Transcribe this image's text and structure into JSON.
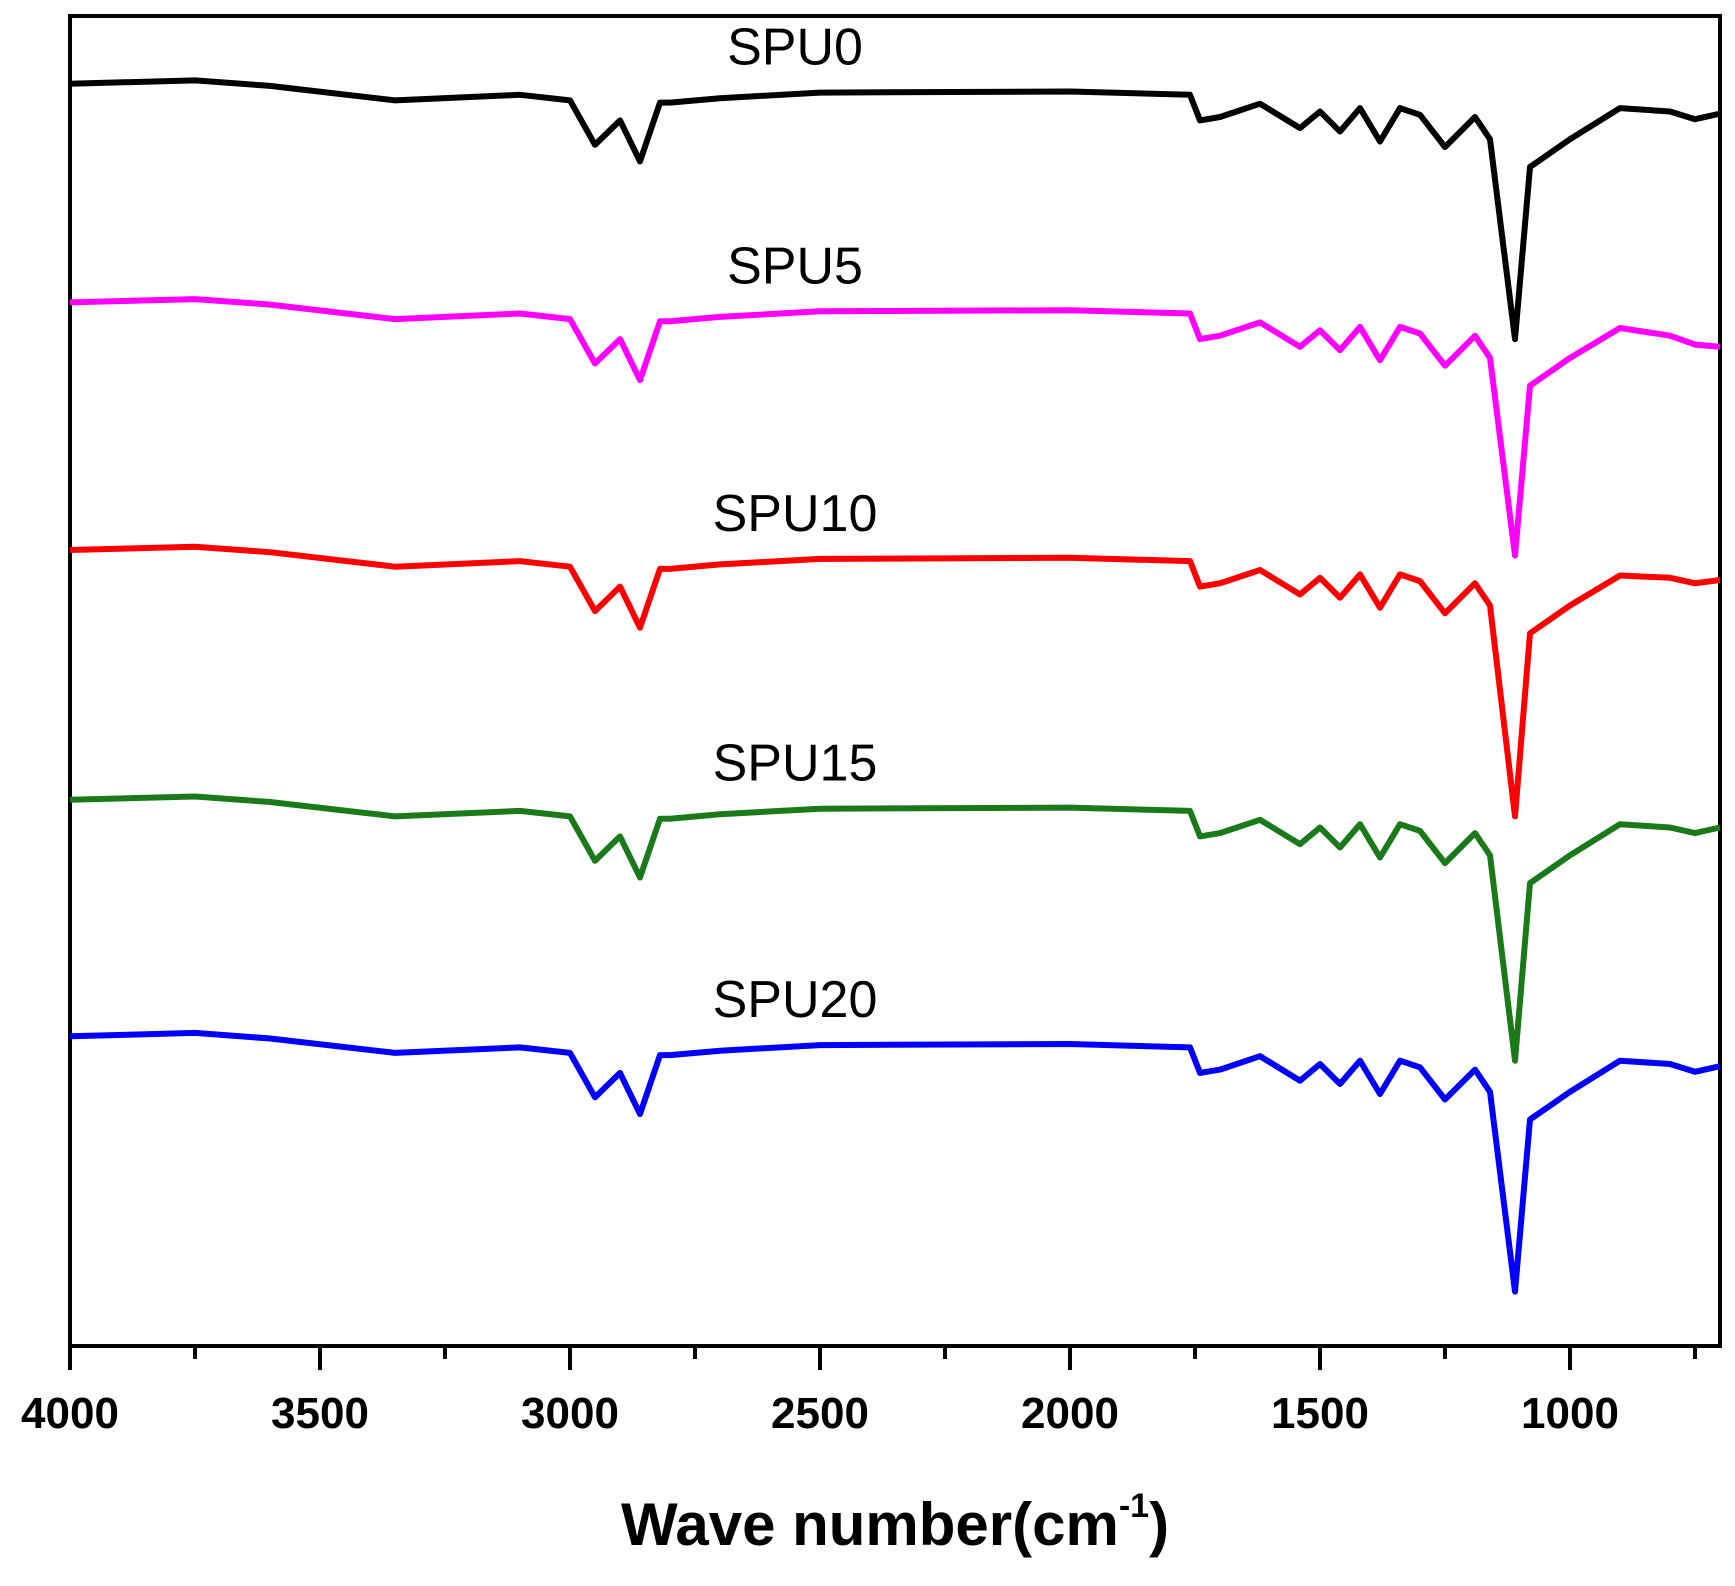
{
  "chart_data": {
    "type": "line",
    "xlabel": {
      "text": "Wave number(cm",
      "sup": "-1",
      "end": ")"
    },
    "xlim": [
      4000,
      700
    ],
    "ylim": [
      0,
      1198
    ],
    "xticks": [
      4000,
      3500,
      3000,
      2500,
      2000,
      1500,
      1000
    ],
    "xminor": [
      3750,
      3250,
      2750,
      2250,
      1750,
      1250,
      750
    ],
    "label_at": 2550,
    "x": [
      4000,
      3750,
      3600,
      3350,
      3100,
      3000,
      2950,
      2900,
      2860,
      2820,
      2800,
      2700,
      2500,
      2000,
      1760,
      1740,
      1700,
      1620,
      1540,
      1500,
      1460,
      1420,
      1380,
      1340,
      1300,
      1250,
      1190,
      1160,
      1110,
      1080,
      1000,
      900,
      800,
      750,
      700
    ],
    "series": [
      {
        "name": "SPU0",
        "color": "#000000",
        "values": [
          1137,
          1140,
          1135,
          1122,
          1127,
          1122,
          1082,
          1104,
          1067,
          1120,
          1120,
          1124,
          1129,
          1130,
          1127,
          1104,
          1107,
          1119,
          1097,
          1112,
          1094,
          1115,
          1085,
          1115,
          1109,
          1080,
          1107,
          1087,
          907,
          1062,
          1087,
          1115,
          1112,
          1105,
          1110
        ]
      },
      {
        "name": "SPU5",
        "color": "#ff00ff",
        "values": [
          940,
          943,
          938,
          925,
          930,
          925,
          885,
          907,
          870,
          923,
          923,
          927,
          932,
          933,
          930,
          907,
          910,
          922,
          900,
          915,
          897,
          918,
          888,
          918,
          912,
          883,
          910,
          890,
          712,
          865,
          890,
          917,
          910,
          902,
          900
        ]
      },
      {
        "name": "SPU10",
        "color": "#ff0000",
        "values": [
          717,
          720,
          715,
          702,
          707,
          702,
          662,
          684,
          647,
          700,
          700,
          704,
          709,
          710,
          707,
          684,
          687,
          699,
          677,
          692,
          674,
          695,
          665,
          695,
          689,
          660,
          687,
          667,
          477,
          642,
          667,
          694,
          692,
          687,
          690
        ]
      },
      {
        "name": "SPU15",
        "color": "#1a7a1a",
        "values": [
          492,
          495,
          490,
          477,
          482,
          477,
          437,
          459,
          422,
          475,
          475,
          479,
          484,
          485,
          482,
          459,
          462,
          474,
          452,
          467,
          449,
          470,
          440,
          470,
          464,
          435,
          462,
          442,
          257,
          417,
          442,
          470,
          467,
          462,
          467
        ]
      },
      {
        "name": "SPU20",
        "color": "#0000ff",
        "values": [
          279,
          282,
          277,
          264,
          269,
          264,
          224,
          246,
          209,
          262,
          262,
          266,
          271,
          272,
          269,
          246,
          249,
          261,
          239,
          254,
          236,
          257,
          227,
          257,
          251,
          222,
          249,
          229,
          49,
          204,
          229,
          257,
          254,
          247,
          252
        ]
      }
    ]
  }
}
